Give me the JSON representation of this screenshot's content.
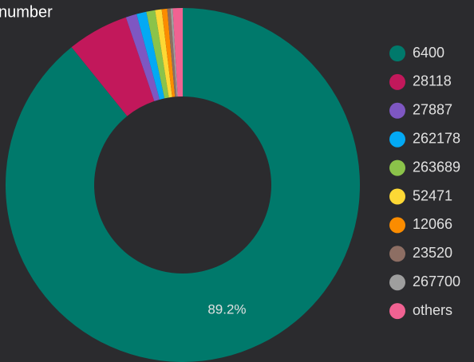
{
  "chart_data": {
    "type": "pie",
    "title": "number",
    "categories": [
      "6400",
      "28118",
      "27887",
      "262178",
      "263689",
      "52471",
      "12066",
      "23520",
      "267700",
      "others"
    ],
    "values": [
      89.2,
      5.6,
      1.0,
      0.9,
      0.8,
      0.6,
      0.5,
      0.3,
      0.2,
      0.9
    ],
    "value_labels": [
      "89.2%",
      null,
      null,
      null,
      null,
      null,
      null,
      null,
      null,
      null
    ],
    "colors": [
      "#00796b",
      "#c2185b",
      "#7e57c2",
      "#03a9f4",
      "#8bc34a",
      "#fdd835",
      "#fb8c00",
      "#8d6e63",
      "#9e9e9e",
      "#f06292"
    ],
    "legend": "right"
  }
}
